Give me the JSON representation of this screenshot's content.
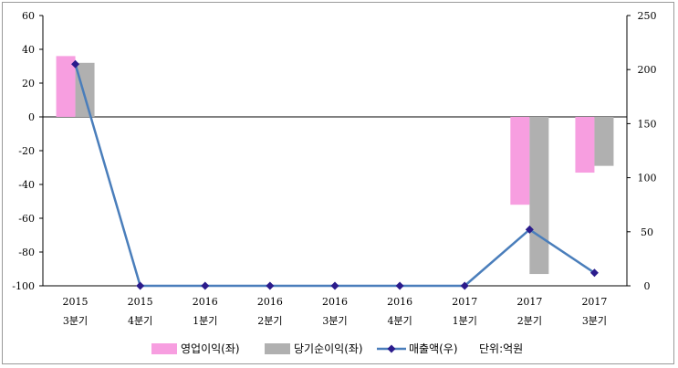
{
  "chart_data": {
    "type": "bar",
    "categories": [
      [
        "2015",
        "3분기"
      ],
      [
        "2015",
        "4분기"
      ],
      [
        "2016",
        "1분기"
      ],
      [
        "2016",
        "2분기"
      ],
      [
        "2016",
        "3분기"
      ],
      [
        "2016",
        "4분기"
      ],
      [
        "2017",
        "1분기"
      ],
      [
        "2017",
        "2분기"
      ],
      [
        "2017",
        "3분기"
      ]
    ],
    "y_left": {
      "min": -100,
      "max": 60,
      "ticks": [
        60,
        40,
        20,
        0,
        -20,
        -40,
        -60,
        -80,
        -100
      ]
    },
    "y_right": {
      "min": 0,
      "max": 250,
      "ticks": [
        250,
        200,
        150,
        100,
        50,
        0
      ]
    },
    "series": [
      {
        "name": "영업이익(좌)",
        "type": "bar",
        "axis": "left",
        "color": "#f79ee0",
        "values": [
          36,
          0,
          0,
          0,
          0,
          0,
          0,
          -52,
          -33
        ]
      },
      {
        "name": "당기순이익(좌)",
        "type": "bar",
        "axis": "left",
        "color": "#b0b0b0",
        "values": [
          32,
          0,
          0,
          0,
          0,
          0,
          0,
          -93,
          -29
        ]
      },
      {
        "name": "매출액(우)",
        "type": "line",
        "axis": "right",
        "color": "#4a7ebb",
        "marker_color": "#2b1b8c",
        "values": [
          205,
          0,
          0,
          0,
          0,
          0,
          0,
          52,
          12
        ]
      }
    ],
    "grid": false,
    "legend_position": "bottom",
    "unit_note": "단위:억원"
  }
}
